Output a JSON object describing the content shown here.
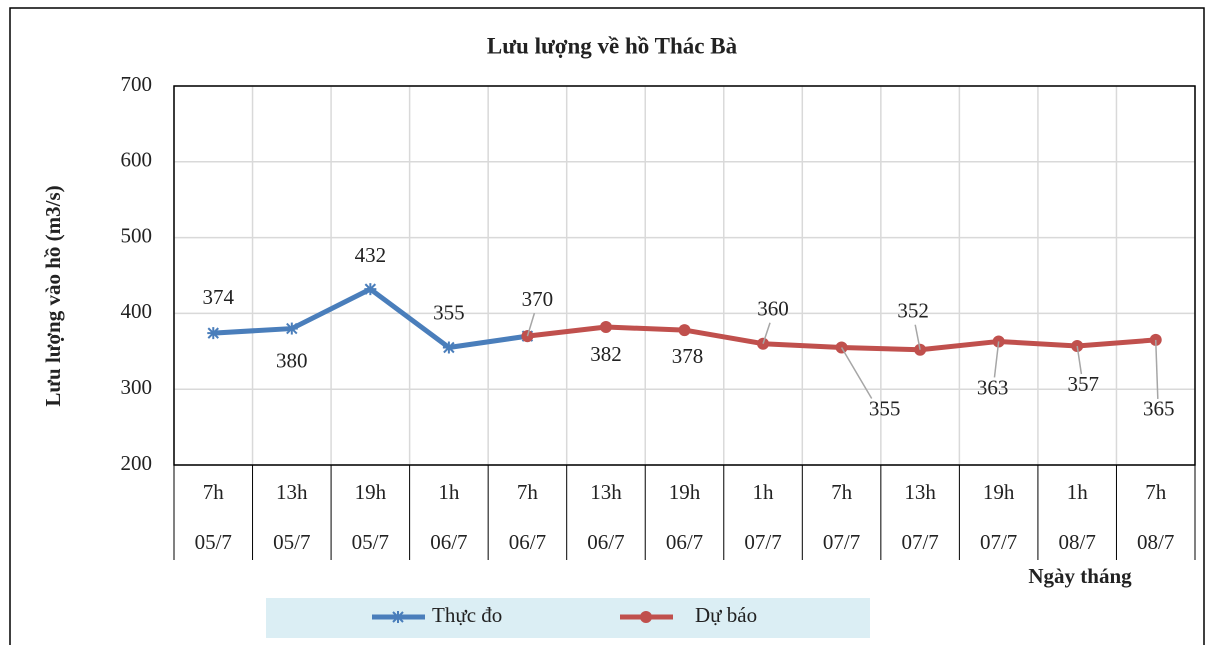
{
  "chart_data": {
    "type": "line",
    "title": "Lưu lượng về hồ Thác Bà",
    "y_label": "Lưu lượng vào hồ (m3/s)",
    "x_label": "Ngày tháng",
    "categories": [
      "7h",
      "13h",
      "19h",
      "1h",
      "7h",
      "13h",
      "19h",
      "1h",
      "7h",
      "13h",
      "19h",
      "1h",
      "7h"
    ],
    "category_dates": [
      "05/7",
      "05/7",
      "05/7",
      "06/7",
      "06/7",
      "06/7",
      "06/7",
      "07/7",
      "07/7",
      "07/7",
      "07/7",
      "08/7",
      "08/7"
    ],
    "series": [
      {
        "name": "Thực đo",
        "color": "#4a7ebb",
        "marker": "asterisk",
        "values": [
          374,
          380,
          432,
          355,
          370,
          null,
          null,
          null,
          null,
          null,
          null,
          null,
          null
        ]
      },
      {
        "name": "Dự báo",
        "color": "#c0504d",
        "marker": "circle",
        "values": [
          null,
          null,
          null,
          null,
          370,
          382,
          378,
          360,
          355,
          352,
          363,
          357,
          365
        ]
      }
    ],
    "ylim": [
      200,
      700
    ],
    "yticks": [
      200,
      300,
      400,
      500,
      600,
      700
    ],
    "grid": true,
    "legend": "bottom"
  }
}
